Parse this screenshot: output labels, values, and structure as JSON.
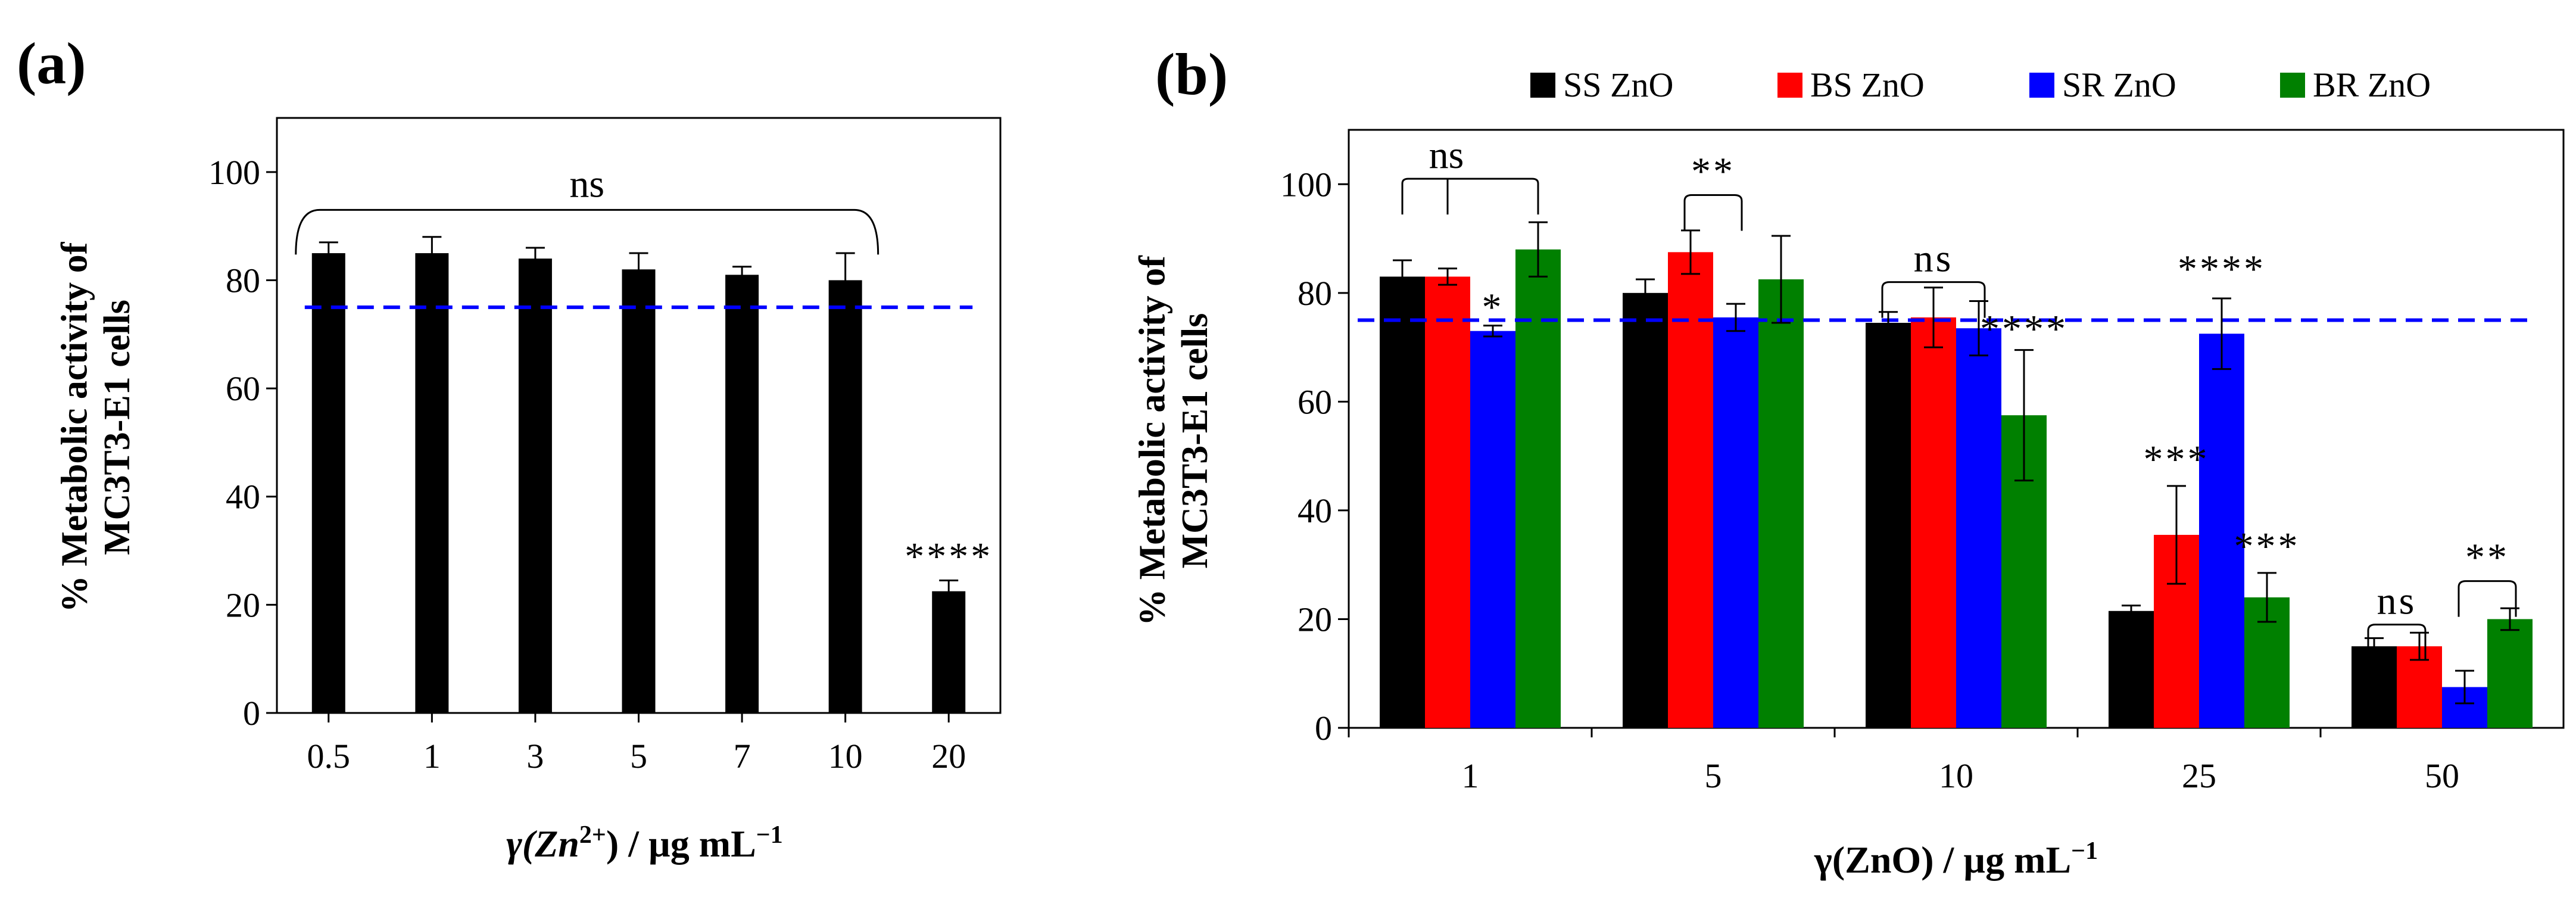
{
  "chart_data": [
    {
      "type": "bar",
      "panel_label": "(a)",
      "title": "",
      "xlabel_parts": [
        "γ(Zn",
        "2+",
        ") / µg mL",
        "−1"
      ],
      "ylabel_lines": [
        "% Metabolic activity of",
        "MC3T3-E1 cells"
      ],
      "categories": [
        "0.5",
        "1",
        "3",
        "5",
        "7",
        "10",
        "20"
      ],
      "values": [
        85,
        85,
        84,
        82,
        81,
        80,
        22.5
      ],
      "errors": [
        2,
        3,
        2,
        3,
        1.5,
        5,
        2
      ],
      "yticks": [
        "0",
        "20",
        "40",
        "60",
        "80",
        "100"
      ],
      "ylim": [
        0,
        110
      ],
      "reference_line": 75,
      "bar_color": "#000000",
      "reference_color": "#0000ff",
      "significance": [
        {
          "label": "ns",
          "bracket": [
            0,
            5
          ],
          "y": 93
        },
        {
          "label": "****",
          "category": 6,
          "y": 25
        }
      ]
    },
    {
      "type": "bar",
      "panel_label": "(b)",
      "title": "",
      "xlabel": "γ(ZnO) / µg mL",
      "xlabel_sup": "−1",
      "ylabel_lines": [
        "% Metabolic activity of",
        "MC3T3-E1 cells"
      ],
      "categories": [
        "1",
        "5",
        "10",
        "25",
        "50"
      ],
      "series": [
        {
          "name": "SS ZnO",
          "color": "#000000",
          "values": [
            83,
            80,
            74.5,
            21.5,
            15
          ],
          "errors": [
            3,
            2.5,
            2,
            1,
            1.5
          ]
        },
        {
          "name": "BS ZnO",
          "color": "#ff0000",
          "values": [
            83,
            87.5,
            75.5,
            35.5,
            15
          ],
          "errors": [
            1.5,
            4,
            5.5,
            9,
            2.5
          ]
        },
        {
          "name": "SR ZnO",
          "color": "#0000ff",
          "values": [
            73,
            75.5,
            73.5,
            72.5,
            7.5
          ],
          "errors": [
            1,
            2.5,
            5,
            6.5,
            3
          ]
        },
        {
          "name": "BR ZnO",
          "color": "#008000",
          "values": [
            88,
            82.5,
            57.5,
            24,
            20
          ],
          "errors": [
            5,
            8,
            12,
            4.5,
            2
          ]
        }
      ],
      "yticks": [
        "0",
        "20",
        "40",
        "60",
        "80",
        "100"
      ],
      "ylim": [
        0,
        110
      ],
      "reference_line": 75,
      "reference_color": "#0000ff",
      "legend_position": "top",
      "significance": [
        {
          "label": "ns",
          "type": "fork",
          "category": 0,
          "from": 0,
          "to": [
            1,
            2,
            3
          ],
          "y": 101
        },
        {
          "label": "*",
          "category": 0,
          "series": 2,
          "y": 75
        },
        {
          "label": "**",
          "type": "bracket",
          "category": 1,
          "series_range": [
            1,
            2
          ],
          "y": 98
        },
        {
          "label": "ns",
          "type": "bracket",
          "category": 2,
          "series_range": [
            0,
            2
          ],
          "y": 82
        },
        {
          "label": "****",
          "category": 2,
          "series": 3,
          "y": 71
        },
        {
          "label": "****",
          "category": 3,
          "series": 2,
          "y": 82
        },
        {
          "label": "***",
          "category": 3,
          "series": 1,
          "y": 47
        },
        {
          "label": "***",
          "category": 3,
          "series": 3,
          "y": 31
        },
        {
          "label": "ns",
          "type": "bracket",
          "category": 4,
          "series_range": [
            0,
            1
          ],
          "y": 19
        },
        {
          "label": "**",
          "type": "bracket",
          "category": 4,
          "series_range": [
            2,
            3
          ],
          "y": 27
        }
      ]
    }
  ]
}
